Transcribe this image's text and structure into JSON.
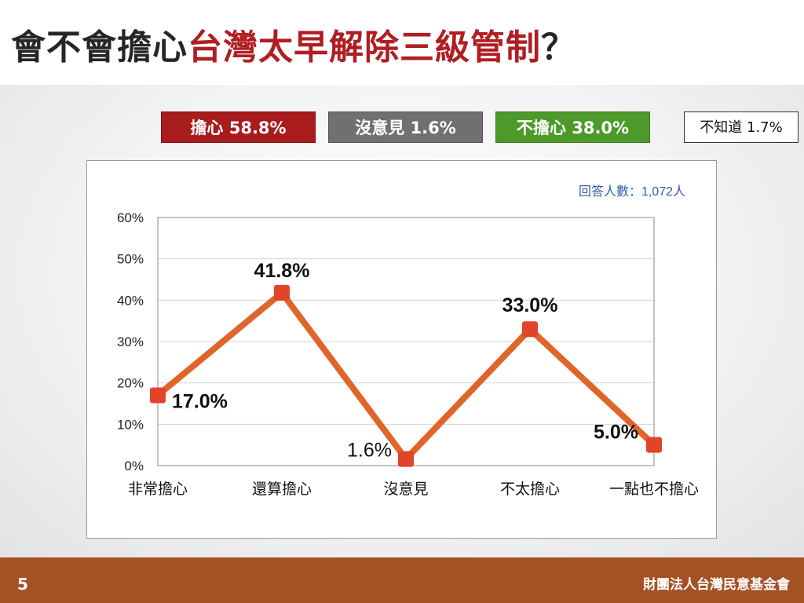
{
  "slide": {
    "title_prefix": "會不會擔心",
    "title_highlight": "台灣太早解除三級管制",
    "title_suffix": "？",
    "page_number": "5",
    "organization": "財團法人台灣民意基金會"
  },
  "legend": {
    "worry": "擔心 58.8%",
    "no_opinion": "沒意見 1.6%",
    "not_worry": "不擔心 38.0%",
    "dont_know": "不知道 1.7%"
  },
  "colors": {
    "title_highlight": "#b01e23",
    "worry_box": "#a81c1e",
    "no_opinion_box": "#707070",
    "not_worry_box": "#4d9a2a",
    "line": "#e0652a",
    "marker": "#e2442a",
    "footer": "#a35125"
  },
  "chart_data": {
    "type": "line",
    "note": "回答人數：1,072人",
    "categories": [
      "非常擔心",
      "還算擔心",
      "沒意見",
      "不太擔心",
      "一點也不擔心"
    ],
    "series": [
      {
        "values": [
          17.0,
          41.8,
          1.6,
          33.0,
          5.0
        ]
      }
    ],
    "data_labels": [
      "17.0%",
      "41.8%",
      "1.6%",
      "33.0%",
      "5.0%"
    ],
    "ylim": [
      0,
      60
    ],
    "yticks": [
      "0%",
      "10%",
      "20%",
      "30%",
      "40%",
      "50%",
      "60%"
    ],
    "grid": true,
    "legend": "none"
  }
}
